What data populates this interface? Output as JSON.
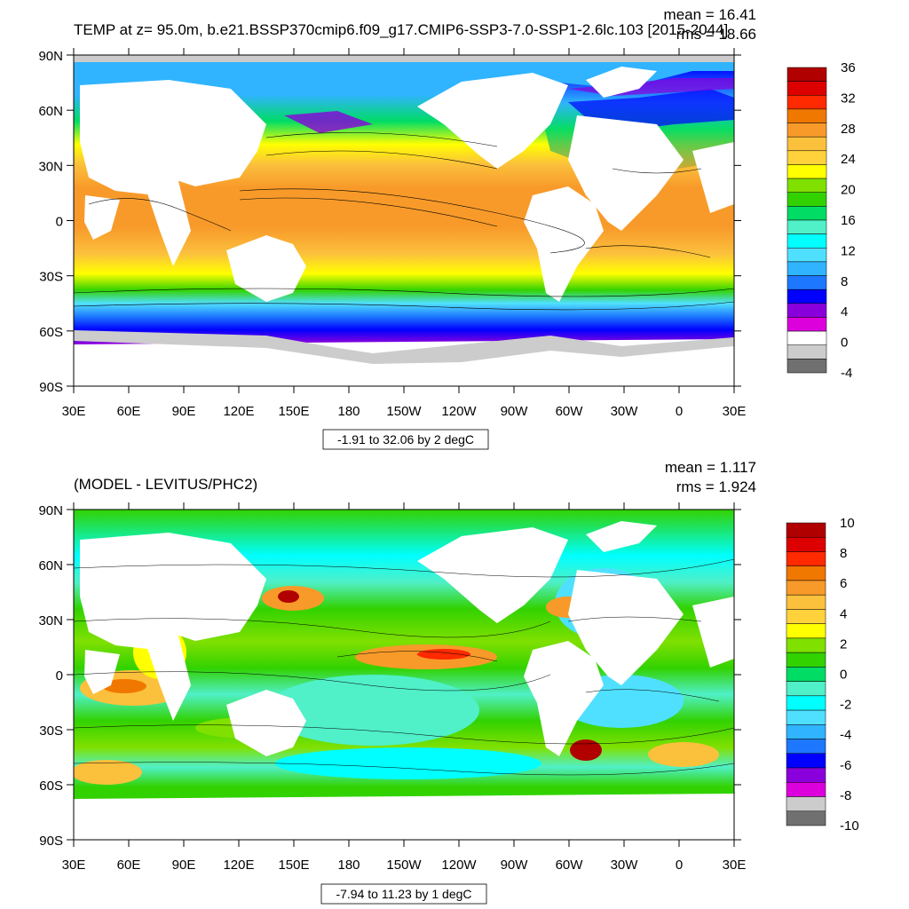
{
  "panels": [
    {
      "title_left": "TEMP at z=  95.0m, b.e21.BSSP370cmip6.f09_g17.CMIP6-SSP3-7.0-SSP1-2.6lc.103 [2015-2044]",
      "title_right_1": "mean = 16.41",
      "title_right_2": "rms = 18.66",
      "range_label": "-1.91 to 32.06 by 2 degC",
      "colorbar": {
        "labels": [
          "36",
          "32",
          "28",
          "24",
          "20",
          "16",
          "12",
          "8",
          "4",
          "0",
          "-4"
        ],
        "colors": [
          "#b00000",
          "#dc0000",
          "#ff2a00",
          "#f07800",
          "#f89a2a",
          "#fbc03c",
          "#ffd23c",
          "#ffff00",
          "#80e000",
          "#32d200",
          "#00dc64",
          "#50f0c8",
          "#00ffff",
          "#50e0ff",
          "#30b4ff",
          "#1e78ff",
          "#0000ff",
          "#8a00dc",
          "#dc00dc",
          "#ffffff",
          "#cccccc",
          "#707070"
        ]
      }
    },
    {
      "title_left": "(MODEL - LEVITUS/PHC2)",
      "title_right_1": "mean = 1.117",
      "title_right_2": "rms = 1.924",
      "range_label": "-7.94 to 11.23 by 1 degC",
      "colorbar": {
        "labels": [
          "10",
          "8",
          "6",
          "4",
          "2",
          "0",
          "-2",
          "-4",
          "-6",
          "-8",
          "-10"
        ],
        "colors": [
          "#b00000",
          "#dc0000",
          "#ff2a00",
          "#f07800",
          "#f89a2a",
          "#fbc03c",
          "#ffd23c",
          "#ffff00",
          "#80e000",
          "#32d200",
          "#00dc64",
          "#50f0c8",
          "#00ffff",
          "#50e0ff",
          "#30b4ff",
          "#1e78ff",
          "#0000ff",
          "#8a00dc",
          "#dc00dc",
          "#cccccc",
          "#707070"
        ]
      }
    }
  ],
  "axes": {
    "y_labels": [
      "90N",
      "60N",
      "30N",
      "0",
      "30S",
      "60S",
      "90S"
    ],
    "x_labels": [
      "30E",
      "60E",
      "90E",
      "120E",
      "150E",
      "180",
      "150W",
      "120W",
      "90W",
      "60W",
      "30W",
      "0",
      "30E"
    ]
  },
  "colors": {
    "land": "#ffffff",
    "ice": "#cccccc",
    "frame": "#000000"
  },
  "chart_data": [
    {
      "type": "heatmap",
      "title": "TEMP at z=  95.0m, b.e21.BSSP370cmip6.f09_g17.CMIP6-SSP3-7.0-SSP1-2.6lc.103 [2015-2044]",
      "stats": {
        "mean": 16.41,
        "rms": 18.66
      },
      "contour": {
        "min": -1.91,
        "max": 32.06,
        "interval": 2,
        "units": "degC"
      },
      "colorbar_levels": [
        -4,
        0,
        4,
        8,
        12,
        16,
        20,
        24,
        28,
        32,
        36
      ],
      "xlim": [
        "30E",
        "30E"
      ],
      "ylim": [
        "90S",
        "90N"
      ],
      "grid": false
    },
    {
      "type": "heatmap",
      "title": "(MODEL - LEVITUS/PHC2)",
      "stats": {
        "mean": 1.117,
        "rms": 1.924
      },
      "contour": {
        "min": -7.94,
        "max": 11.23,
        "interval": 1,
        "units": "degC"
      },
      "colorbar_levels": [
        -10,
        -8,
        -6,
        -4,
        -2,
        0,
        2,
        4,
        6,
        8,
        10
      ],
      "xlim": [
        "30E",
        "30E"
      ],
      "ylim": [
        "90S",
        "90N"
      ],
      "grid": false
    }
  ]
}
